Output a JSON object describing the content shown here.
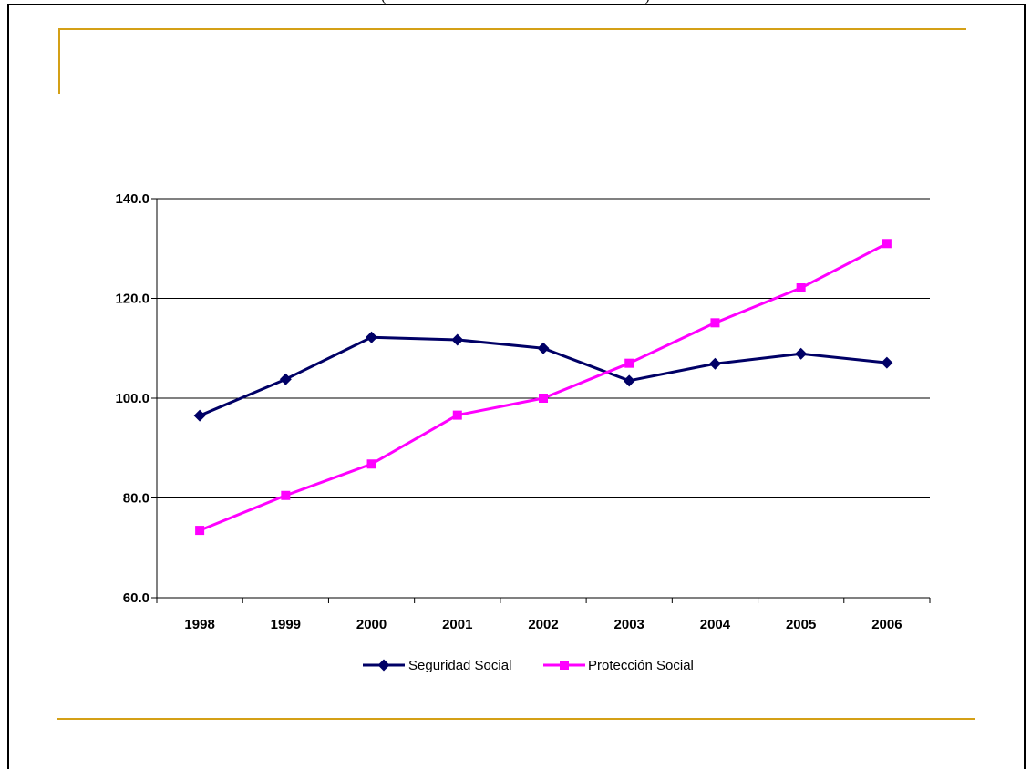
{
  "header": {
    "caption": "(                                                                       )"
  },
  "chart_data": {
    "type": "line",
    "title": "",
    "xlabel": "",
    "ylabel": "",
    "categories": [
      "1998",
      "1999",
      "2000",
      "2001",
      "2002",
      "2003",
      "2004",
      "2005",
      "2006"
    ],
    "ylim": [
      60,
      140
    ],
    "yticks": [
      "60.0",
      "80.0",
      "100.0",
      "120.0",
      "140.0"
    ],
    "grid": true,
    "legend_position": "bottom",
    "series": [
      {
        "name": "Seguridad Social",
        "values": [
          96.5,
          103.8,
          112.2,
          111.7,
          110.0,
          103.5,
          106.9,
          108.9,
          107.1
        ],
        "color": "#000066",
        "marker": "diamond"
      },
      {
        "name": "Protección Social",
        "values": [
          73.5,
          80.5,
          86.8,
          96.6,
          100.0,
          107.0,
          115.1,
          122.1,
          131.0
        ],
        "color": "#ff00ff",
        "marker": "square"
      }
    ]
  }
}
